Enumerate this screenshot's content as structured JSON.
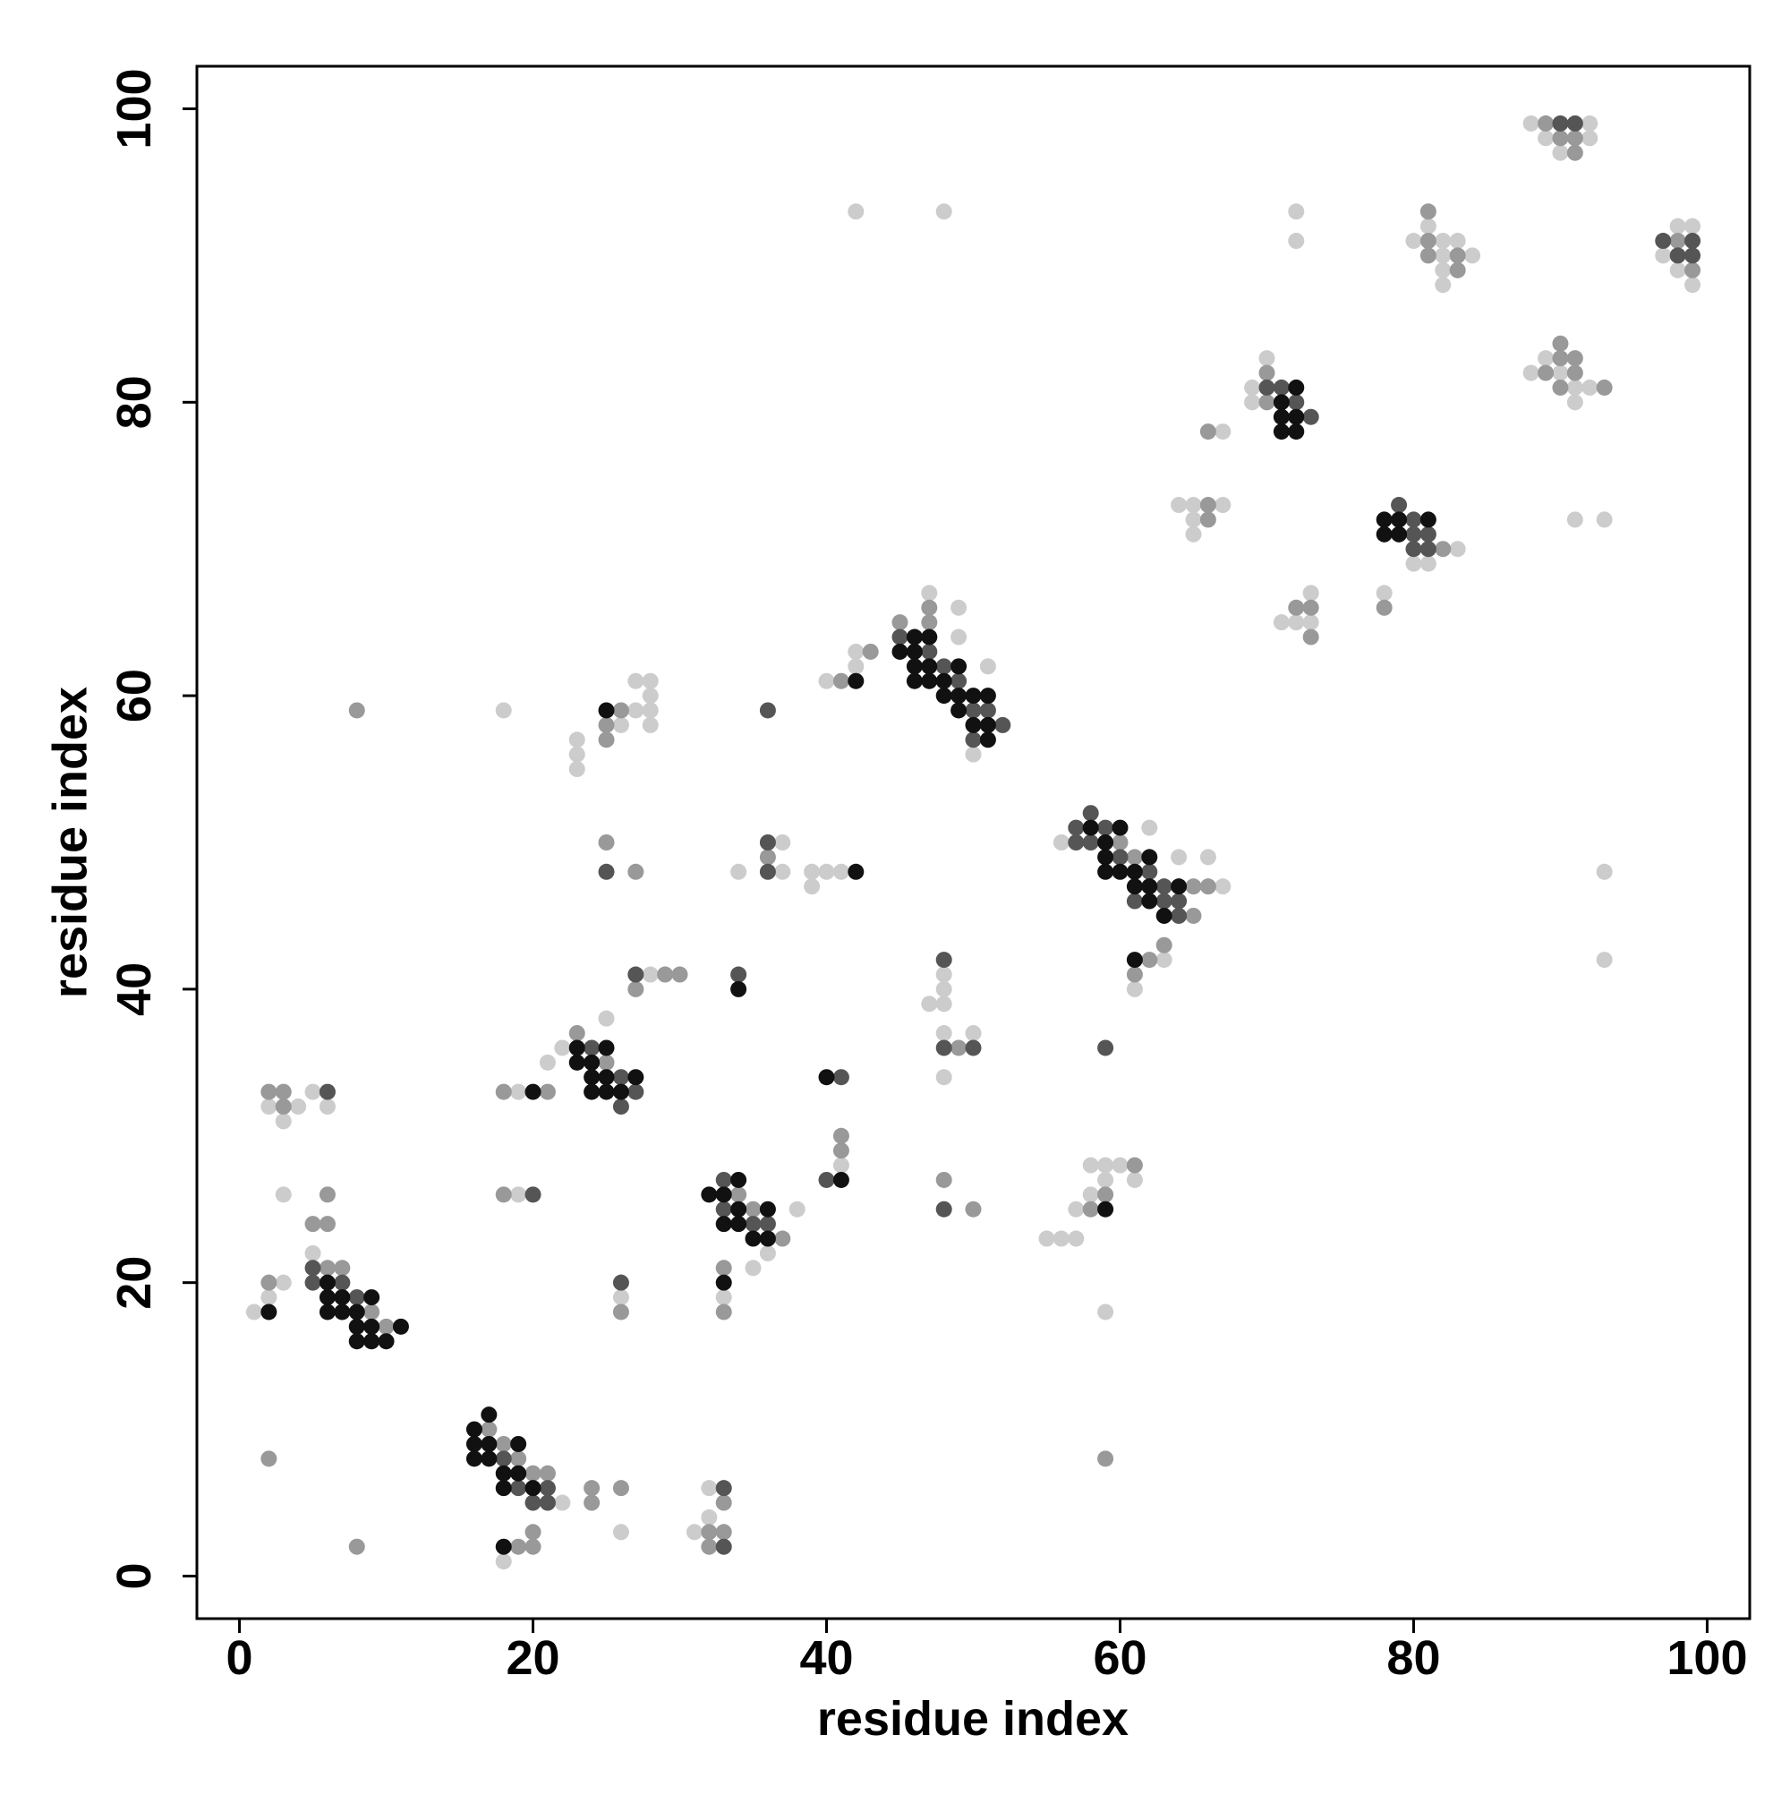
{
  "chart_data": {
    "type": "scatter",
    "x_label": "residue index",
    "y_label": "residue index",
    "xlim": [
      -2.9,
      102.9
    ],
    "ylim": [
      -2.9,
      102.9
    ],
    "xticks": [
      0,
      20,
      40,
      60,
      80,
      100
    ],
    "yticks": [
      0,
      20,
      40,
      60,
      80,
      100
    ],
    "grid": false,
    "series": [
      {
        "color": "#cccccc",
        "x": [
          1,
          2,
          3,
          5,
          3,
          2,
          3,
          4,
          5,
          6,
          22,
          18,
          19,
          19,
          21,
          22,
          18,
          26,
          25,
          26,
          27,
          23,
          23,
          23,
          27,
          28,
          28,
          28,
          28,
          28,
          26,
          38,
          35,
          36,
          33,
          32,
          32,
          31,
          34,
          37,
          37,
          39,
          39,
          40,
          41,
          41,
          40,
          42,
          42,
          47,
          49,
          49,
          50,
          51,
          48,
          42,
          48,
          48,
          47,
          48,
          48,
          50,
          48,
          56,
          62,
          64,
          66,
          67,
          61,
          63,
          55,
          56,
          57,
          57,
          58,
          59,
          58,
          59,
          60,
          61,
          59,
          64,
          65,
          65,
          65,
          67,
          67,
          69,
          69,
          70,
          72,
          72,
          71,
          72,
          73,
          73,
          80,
          81,
          83,
          78,
          81,
          80,
          82,
          82,
          82,
          82,
          83,
          84,
          88,
          89,
          90,
          91,
          91,
          92,
          91,
          93,
          93,
          93,
          88,
          89,
          90,
          92,
          92,
          97,
          98,
          98,
          99,
          99
        ],
        "y": [
          18,
          19,
          20,
          22,
          26,
          32,
          31,
          32,
          33,
          32,
          5,
          1,
          26,
          33,
          35,
          36,
          59,
          3,
          38,
          58,
          59,
          57,
          56,
          55,
          61,
          61,
          60,
          59,
          58,
          41,
          19,
          25,
          21,
          22,
          19,
          6,
          4,
          3,
          48,
          50,
          48,
          48,
          47,
          48,
          48,
          28,
          61,
          62,
          63,
          67,
          66,
          64,
          56,
          62,
          93,
          93,
          41,
          40,
          39,
          39,
          37,
          37,
          34,
          50,
          51,
          49,
          49,
          47,
          40,
          42,
          23,
          23,
          23,
          25,
          26,
          27,
          28,
          28,
          28,
          27,
          18,
          73,
          73,
          72,
          71,
          73,
          78,
          81,
          80,
          83,
          93,
          91,
          65,
          65,
          67,
          65,
          69,
          69,
          70,
          67,
          92,
          91,
          91,
          90,
          89,
          88,
          91,
          90,
          82,
          83,
          82,
          81,
          80,
          81,
          72,
          72,
          48,
          42,
          99,
          98,
          97,
          99,
          98,
          90,
          92,
          89,
          92,
          88
        ]
      },
      {
        "color": "#999999",
        "x": [
          2,
          6,
          7,
          9,
          10,
          5,
          6,
          6,
          2,
          3,
          3,
          2,
          8,
          8,
          17,
          18,
          19,
          20,
          21,
          19,
          20,
          20,
          18,
          18,
          21,
          24,
          24,
          26,
          23,
          25,
          25,
          25,
          26,
          25,
          27,
          27,
          29,
          30,
          26,
          34,
          35,
          37,
          33,
          33,
          33,
          32,
          33,
          32,
          36,
          41,
          43,
          45,
          47,
          47,
          41,
          41,
          49,
          48,
          50,
          60,
          61,
          65,
          65,
          66,
          62,
          61,
          63,
          58,
          59,
          61,
          59,
          66,
          66,
          66,
          70,
          70,
          72,
          73,
          73,
          82,
          78,
          81,
          81,
          81,
          83,
          83,
          89,
          90,
          90,
          90,
          91,
          91,
          93,
          89,
          90,
          91,
          91,
          98,
          99
        ],
        "y": [
          20,
          21,
          21,
          18,
          17,
          24,
          24,
          26,
          33,
          33,
          32,
          8,
          2,
          59,
          10,
          9,
          8,
          7,
          7,
          2,
          2,
          3,
          26,
          33,
          33,
          6,
          5,
          6,
          37,
          35,
          58,
          57,
          59,
          50,
          48,
          40,
          41,
          41,
          18,
          26,
          25,
          23,
          21,
          18,
          5,
          3,
          3,
          2,
          49,
          61,
          63,
          65,
          66,
          65,
          29,
          30,
          36,
          27,
          25,
          50,
          49,
          47,
          45,
          47,
          42,
          41,
          43,
          25,
          26,
          28,
          8,
          73,
          72,
          78,
          82,
          80,
          66,
          66,
          64,
          70,
          66,
          93,
          91,
          90,
          90,
          89,
          82,
          84,
          83,
          81,
          83,
          82,
          81,
          99,
          98,
          98,
          97,
          91,
          89
        ]
      },
      {
        "color": "#555555",
        "x": [
          5,
          5,
          7,
          8,
          6,
          18,
          19,
          20,
          21,
          21,
          20,
          24,
          26,
          26,
          27,
          25,
          27,
          26,
          33,
          33,
          35,
          36,
          33,
          33,
          34,
          36,
          36,
          36,
          41,
          40,
          45,
          47,
          48,
          49,
          50,
          50,
          51,
          52,
          48,
          48,
          50,
          48,
          57,
          57,
          58,
          58,
          59,
          60,
          61,
          62,
          63,
          63,
          64,
          64,
          59,
          70,
          71,
          72,
          73,
          79,
          80,
          80,
          80,
          81,
          81,
          90,
          91,
          97,
          98,
          99,
          99
        ],
        "y": [
          20,
          21,
          20,
          19,
          33,
          8,
          6,
          5,
          6,
          5,
          26,
          36,
          34,
          32,
          33,
          48,
          41,
          20,
          27,
          25,
          24,
          24,
          6,
          2,
          41,
          50,
          48,
          59,
          34,
          27,
          64,
          63,
          62,
          61,
          59,
          57,
          59,
          58,
          42,
          36,
          36,
          25,
          51,
          50,
          52,
          50,
          51,
          49,
          46,
          48,
          47,
          46,
          46,
          45,
          36,
          81,
          81,
          80,
          79,
          73,
          72,
          71,
          70,
          71,
          70,
          99,
          99,
          91,
          90,
          91,
          90
        ]
      },
      {
        "color": "#111111",
        "x": [
          2,
          6,
          6,
          7,
          7,
          6,
          8,
          8,
          9,
          8,
          9,
          9,
          10,
          11,
          16,
          16,
          16,
          17,
          17,
          17,
          18,
          18,
          19,
          19,
          20,
          18,
          20,
          23,
          23,
          24,
          24,
          24,
          25,
          25,
          25,
          26,
          27,
          25,
          32,
          33,
          33,
          34,
          34,
          34,
          35,
          36,
          36,
          33,
          34,
          42,
          40,
          41,
          42,
          45,
          46,
          46,
          46,
          46,
          47,
          47,
          47,
          48,
          48,
          49,
          49,
          49,
          50,
          50,
          51,
          51,
          51,
          58,
          59,
          59,
          59,
          60,
          60,
          61,
          61,
          62,
          62,
          62,
          63,
          64,
          61,
          59,
          71,
          71,
          71,
          72,
          72,
          72,
          78,
          78,
          79,
          79,
          81
        ],
        "y": [
          18,
          20,
          19,
          19,
          18,
          18,
          18,
          17,
          19,
          16,
          16,
          17,
          16,
          17,
          10,
          9,
          8,
          11,
          9,
          8,
          7,
          6,
          9,
          7,
          6,
          2,
          33,
          36,
          35,
          35,
          34,
          33,
          36,
          34,
          33,
          33,
          34,
          59,
          26,
          26,
          24,
          27,
          25,
          24,
          23,
          25,
          23,
          20,
          40,
          48,
          34,
          27,
          61,
          63,
          64,
          63,
          62,
          61,
          64,
          62,
          61,
          61,
          60,
          62,
          60,
          59,
          60,
          58,
          60,
          58,
          57,
          51,
          50,
          49,
          48,
          51,
          48,
          48,
          47,
          49,
          47,
          46,
          45,
          47,
          42,
          25,
          80,
          79,
          78,
          81,
          79,
          78,
          72,
          71,
          72,
          71,
          72
        ]
      }
    ]
  }
}
